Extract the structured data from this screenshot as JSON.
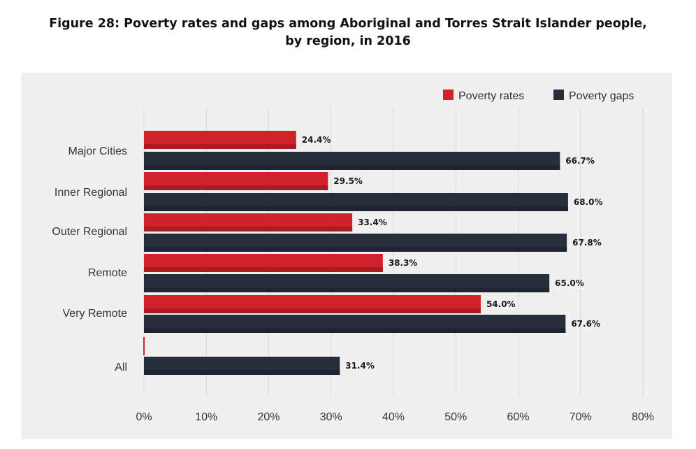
{
  "chart_data": {
    "type": "bar",
    "orientation": "horizontal",
    "title": "Figure 28: Poverty rates and gaps among Aboriginal and Torres Strait Islander people, by region, in 2016",
    "title_lines": [
      "Figure 28: Poverty rates and gaps among Aboriginal and Torres Strait Islander people,",
      "by region, in 2016"
    ],
    "categories": [
      "Major Cities",
      "Inner Regional",
      "Outer Regional",
      "Remote",
      "Very Remote",
      "All"
    ],
    "series": [
      {
        "name": "Poverty rates",
        "color": "#d0222a",
        "values": [
          24.4,
          29.5,
          33.4,
          38.3,
          54.0,
          null
        ],
        "labels": [
          "24.4%",
          "29.5%",
          "33.4%",
          "38.3%",
          "54.0%",
          ""
        ]
      },
      {
        "name": "Poverty gaps",
        "color": "#262d3b",
        "values": [
          66.7,
          68.0,
          67.8,
          65.0,
          67.6,
          31.4
        ],
        "labels": [
          "66.7%",
          "68.0%",
          "67.8%",
          "65.0%",
          "67.6%",
          "31.4%"
        ]
      }
    ],
    "xlim": [
      0,
      80
    ],
    "xticks": [
      0,
      10,
      20,
      30,
      40,
      50,
      60,
      70,
      80
    ],
    "xtick_labels": [
      "0%",
      "10%",
      "20%",
      "30%",
      "40%",
      "50%",
      "60%",
      "70%",
      "80%"
    ],
    "xlabel": "",
    "ylabel": "",
    "grid": true,
    "legend_position": "top-right",
    "background": "#f0f0f0"
  }
}
